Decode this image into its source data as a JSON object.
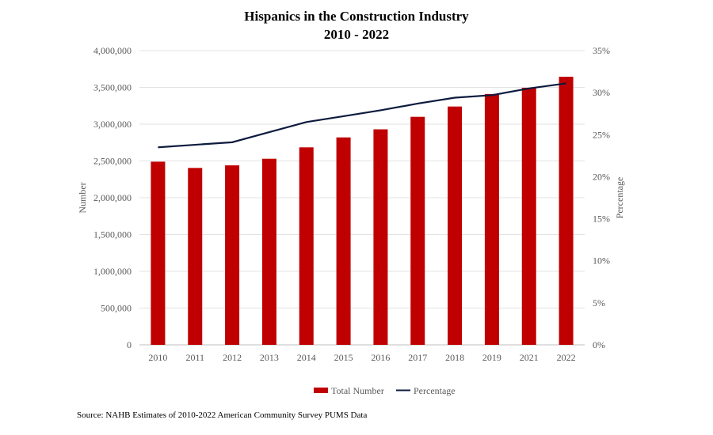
{
  "chart_data": {
    "type": "bar+line",
    "title": "Hispanics in the Construction Industry",
    "subtitle": "2010 - 2022",
    "categories": [
      "2010",
      "2011",
      "2012",
      "2013",
      "2014",
      "2015",
      "2016",
      "2017",
      "2018",
      "2019",
      "2021",
      "2022"
    ],
    "series": [
      {
        "name": "Total Number",
        "type": "bar",
        "axis": "left",
        "color": "#C00000",
        "values": [
          2490000,
          2405000,
          2440000,
          2530000,
          2685000,
          2820000,
          2930000,
          3100000,
          3240000,
          3410000,
          3495000,
          3645000
        ]
      },
      {
        "name": "Percentage",
        "type": "line",
        "axis": "right",
        "color": "#0D1B3E",
        "values": [
          23.5,
          23.8,
          24.1,
          25.3,
          26.5,
          27.2,
          27.9,
          28.7,
          29.4,
          29.7,
          30.5,
          31.1
        ]
      }
    ],
    "ylabel": "Number",
    "y2label": "Percentage",
    "ylim": [
      0,
      4000000
    ],
    "y2lim": [
      0,
      35
    ],
    "yticks": [
      "0",
      "500,000",
      "1,000,000",
      "1,500,000",
      "2,000,000",
      "2,500,000",
      "3,000,000",
      "3,500,000",
      "4,000,000"
    ],
    "y2ticks": [
      "0%",
      "5%",
      "10%",
      "15%",
      "20%",
      "25%",
      "30%",
      "35%"
    ],
    "grid": true,
    "legend": "bottom"
  },
  "source": "Source: NAHB Estimates of 2010-2022  American Community  Survey PUMS Data"
}
